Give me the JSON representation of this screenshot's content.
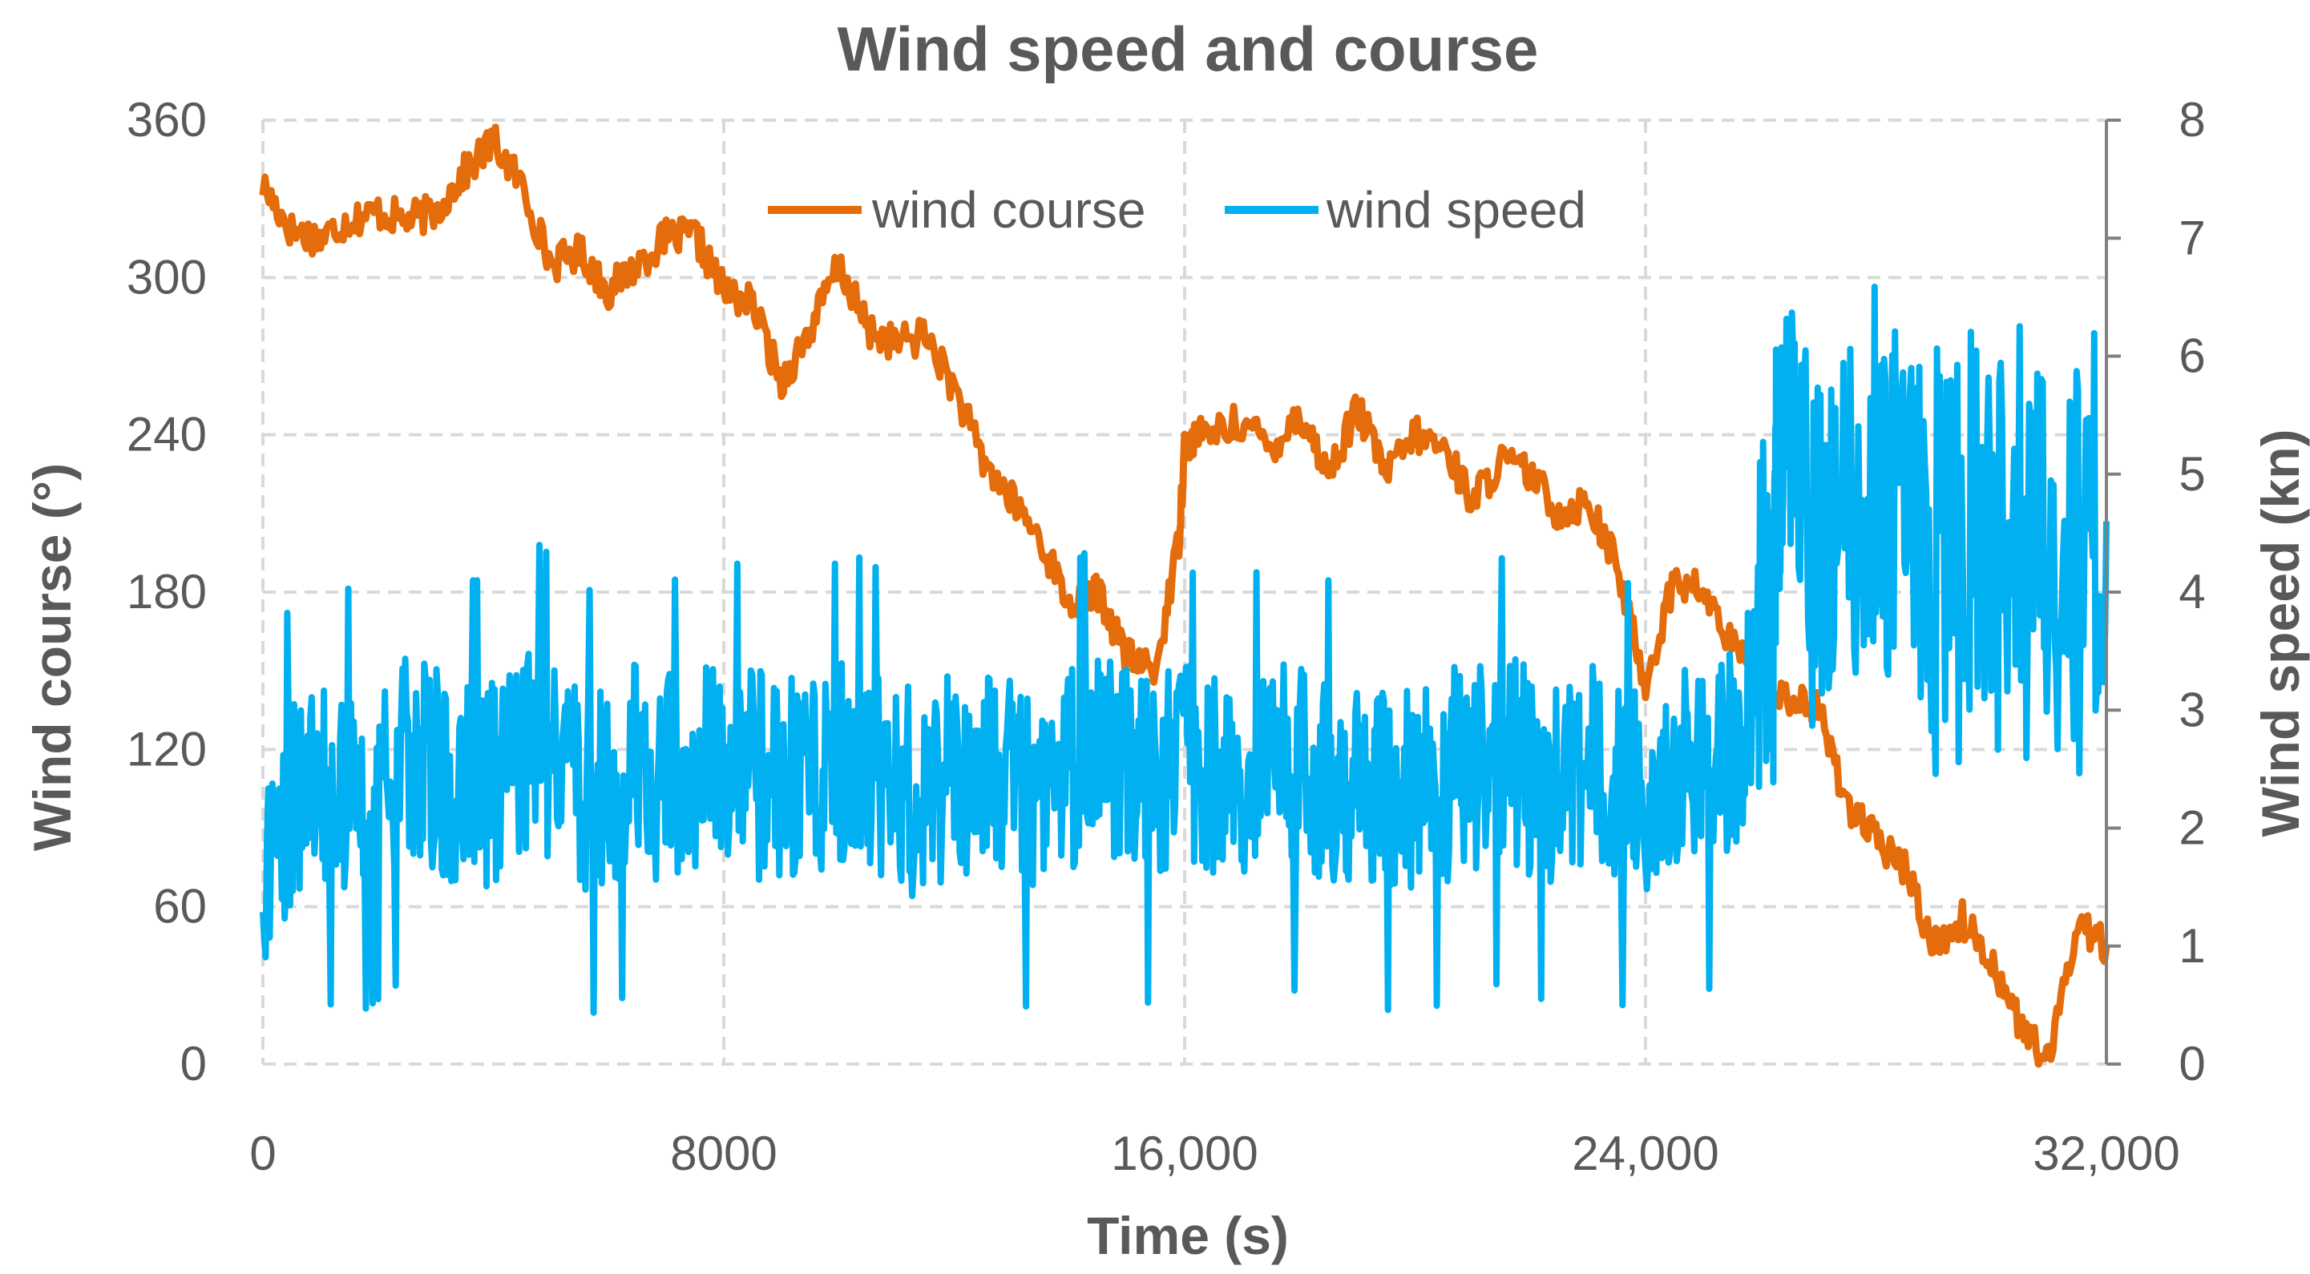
{
  "chart_data": {
    "type": "line",
    "title": "Wind  speed and  course",
    "xlabel": "Time (s)",
    "ylabel_left": "Wind course (°)",
    "ylabel_right": "Wind speed (kn)",
    "xlim": [
      0,
      32000
    ],
    "ylim_left": [
      0,
      360
    ],
    "ylim_right": [
      0,
      8
    ],
    "x_ticks": [
      "0",
      "8000",
      "16,000",
      "24,000",
      "32,000"
    ],
    "y_ticks_left": [
      "0",
      "60",
      "120",
      "180",
      "240",
      "300",
      "360"
    ],
    "y_ticks_right": [
      "0",
      "1",
      "2",
      "3",
      "4",
      "5",
      "6",
      "7",
      "8"
    ],
    "grid": true,
    "legend_position": "top-center",
    "colors": {
      "wind_course": "#E46C0A",
      "wind_speed": "#00B0F0",
      "grid": "#D9D9D9",
      "axis": "#808080"
    },
    "series": [
      {
        "name": "wind course",
        "axis": "left",
        "x": [
          0,
          500,
          1000,
          1500,
          2000,
          2500,
          3000,
          3500,
          4000,
          4500,
          5000,
          5500,
          6000,
          6500,
          7000,
          7500,
          8000,
          8500,
          9000,
          9500,
          10000,
          10500,
          11000,
          11500,
          12000,
          12500,
          13000,
          13500,
          14000,
          14500,
          15000,
          15500,
          15900,
          16000,
          16300,
          17000,
          17500,
          18000,
          18500,
          19000,
          19500,
          20000,
          20500,
          21000,
          21500,
          22000,
          22500,
          23000,
          23500,
          24000,
          24500,
          25000,
          25500,
          26000,
          26500,
          27000,
          27500,
          28000,
          28500,
          29000,
          29500,
          30000,
          30500,
          31000,
          31500,
          32000
        ],
        "values": [
          335,
          318,
          315,
          322,
          325,
          322,
          325,
          340,
          352,
          335,
          305,
          310,
          295,
          305,
          315,
          316,
          295,
          290,
          260,
          280,
          305,
          280,
          275,
          278,
          258,
          230,
          215,
          200,
          175,
          180,
          155,
          150,
          200,
          236,
          240,
          245,
          235,
          248,
          225,
          250,
          225,
          240,
          235,
          215,
          230,
          225,
          210,
          215,
          190,
          145,
          185,
          180,
          160,
          145,
          140,
          135,
          100,
          85,
          75,
          45,
          55,
          40,
          15,
          0,
          55,
          45
        ]
      },
      {
        "name": "wind speed",
        "axis": "right",
        "x": [
          0,
          800,
          1600,
          2400,
          3200,
          4000,
          4800,
          5600,
          6400,
          7200,
          8000,
          8800,
          9600,
          10400,
          11200,
          12000,
          12800,
          13600,
          14400,
          15200,
          16000,
          16800,
          17600,
          18400,
          19200,
          20000,
          20800,
          21600,
          22400,
          23200,
          24000,
          24800,
          25600,
          26200,
          26400,
          27200,
          28000,
          28800,
          29600,
          30400,
          31200,
          32000
        ],
        "values": [
          1.7,
          2.5,
          2.3,
          2.6,
          2.4,
          2.4,
          2.7,
          2.3,
          2.5,
          2.4,
          2.6,
          2.4,
          2.5,
          2.6,
          2.3,
          2.4,
          2.5,
          2.3,
          2.7,
          2.4,
          2.5,
          2.3,
          2.6,
          2.4,
          2.4,
          2.3,
          2.5,
          2.6,
          2.4,
          2.5,
          2.3,
          2.5,
          2.6,
          4.2,
          5.2,
          4.5,
          4.9,
          4.3,
          4.5,
          4.6,
          4.2,
          4.6
        ]
      }
    ]
  }
}
